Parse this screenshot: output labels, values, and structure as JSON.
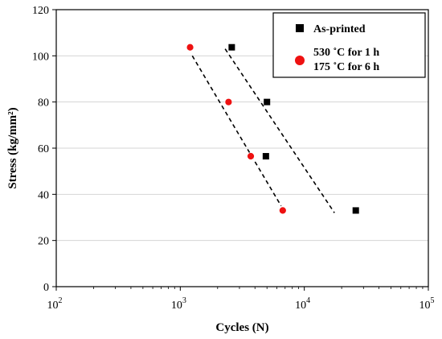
{
  "chart_data": {
    "type": "scatter",
    "xlabel": "Cycles (N)",
    "ylabel": "Stress (kg/mm²)",
    "xscale": "log",
    "xlim": [
      100,
      100000
    ],
    "ylim": [
      0,
      120
    ],
    "x_ticks": [
      {
        "value": 100,
        "base": "10",
        "exp": "2"
      },
      {
        "value": 1000,
        "base": "10",
        "exp": "3"
      },
      {
        "value": 10000,
        "base": "10",
        "exp": "4"
      },
      {
        "value": 100000,
        "base": "10",
        "exp": "5"
      }
    ],
    "y_ticks": [
      0,
      20,
      40,
      60,
      80,
      100,
      120
    ],
    "grid": "horizontal",
    "legend_position": "top-right",
    "series": [
      {
        "name": "As-printed",
        "marker": "square",
        "color": "#000000",
        "points": [
          [
            2600,
            103.7
          ],
          [
            5000,
            80
          ],
          [
            4900,
            56.5
          ],
          [
            26000,
            33
          ]
        ],
        "trendline": [
          [
            2300,
            103
          ],
          [
            17500,
            32
          ]
        ]
      },
      {
        "name_lines": [
          "530 ˚C for 1 h",
          "175 ˚C for 6 h"
        ],
        "marker": "circle",
        "color": "#ee1111",
        "points": [
          [
            1200,
            103.7
          ],
          [
            2450,
            80
          ],
          [
            3700,
            56.5
          ],
          [
            6700,
            33
          ]
        ],
        "trendline": [
          [
            1250,
            100
          ],
          [
            6500,
            35
          ]
        ]
      }
    ]
  }
}
